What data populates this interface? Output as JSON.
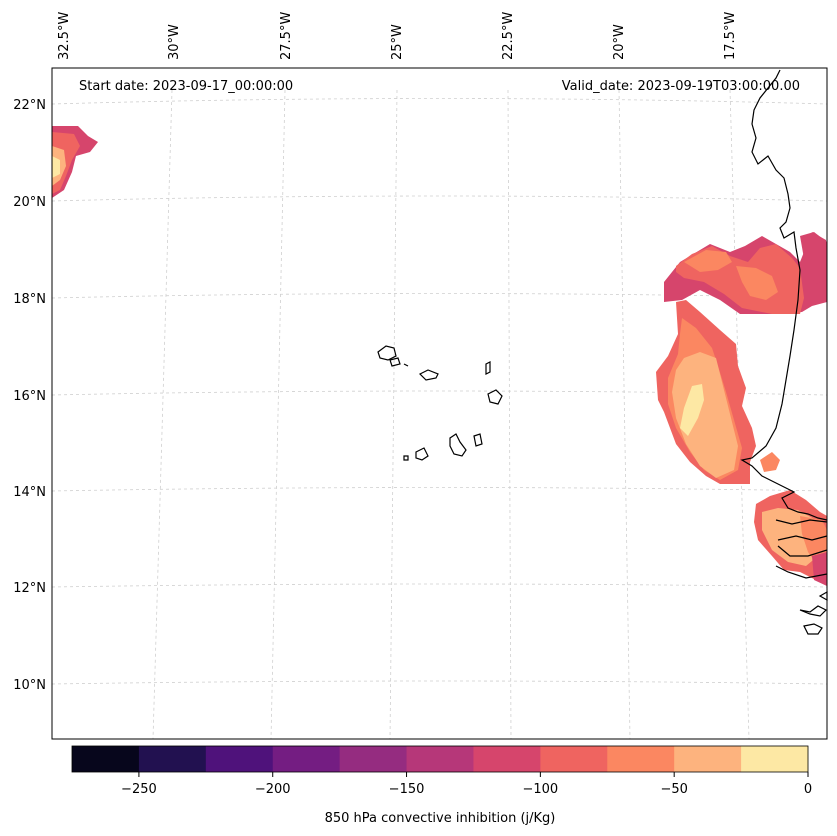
{
  "map": {
    "start_date_label": "Start date: 2023-09-17_00:00:00",
    "valid_date_label": "Valid_date: 2023-09-19T03:00:00.00",
    "lon_ticks": [
      "32.5°W",
      "30°W",
      "27.5°W",
      "25°W",
      "22.5°W",
      "20°W",
      "17.5°W"
    ],
    "lat_ticks": [
      "22°N",
      "20°N",
      "18°N",
      "16°N",
      "14°N",
      "12°N",
      "10°N"
    ]
  },
  "colorbar": {
    "title": "850 hPa convective inhibition (j/Kg)",
    "tick_labels": [
      "−250",
      "−200",
      "−150",
      "−100",
      "−50",
      "0"
    ],
    "colors": [
      "#07061c",
      "#221150",
      "#4f127b",
      "#741d82",
      "#952c80",
      "#b63779",
      "#d6456c",
      "#ef6460",
      "#fb8761",
      "#fdb37e",
      "#fde8a4"
    ]
  },
  "legend_colors": {
    "c_-125_-100": "#d6456c",
    "c_-100_-75": "#ef6460",
    "c_-75_-50": "#fb8761",
    "c_-50_-25": "#fdb37e",
    "c_-25_0": "#fde8a4"
  }
}
